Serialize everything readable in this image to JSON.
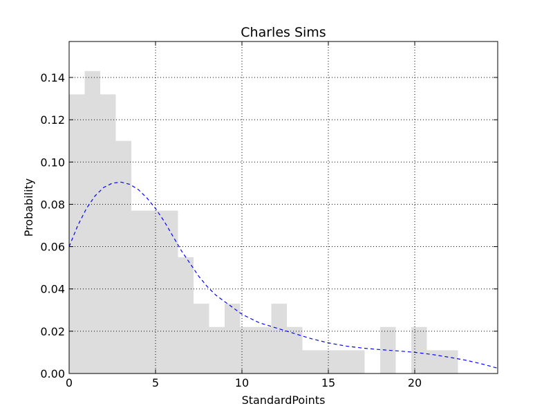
{
  "chart_data": {
    "type": "bar",
    "title": "Charles Sims",
    "xlabel": "StandardPoints",
    "ylabel": "Probability",
    "xlim": [
      0,
      24.8
    ],
    "ylim": [
      0,
      0.157
    ],
    "grid": true,
    "x_ticks": [
      0,
      5,
      10,
      15,
      20
    ],
    "x_tick_labels": [
      "0",
      "5",
      "10",
      "15",
      "20"
    ],
    "y_ticks": [
      0.0,
      0.02,
      0.04,
      0.06,
      0.08,
      0.1,
      0.12,
      0.14
    ],
    "y_tick_labels": [
      "0.00",
      "0.02",
      "0.04",
      "0.06",
      "0.08",
      "0.10",
      "0.12",
      "0.14"
    ],
    "bar_color": "#dddddd",
    "curve_color": "#0000ff",
    "histogram": {
      "bin_width": 0.9,
      "bins": [
        {
          "x0": 0.0,
          "value": 0.132
        },
        {
          "x0": 0.9,
          "value": 0.143
        },
        {
          "x0": 1.8,
          "value": 0.132
        },
        {
          "x0": 2.7,
          "value": 0.11
        },
        {
          "x0": 3.6,
          "value": 0.077
        },
        {
          "x0": 4.5,
          "value": 0.077
        },
        {
          "x0": 5.4,
          "value": 0.077
        },
        {
          "x0": 6.3,
          "value": 0.055
        },
        {
          "x0": 7.2,
          "value": 0.033
        },
        {
          "x0": 8.1,
          "value": 0.022
        },
        {
          "x0": 9.0,
          "value": 0.033
        },
        {
          "x0": 9.9,
          "value": 0.022
        },
        {
          "x0": 10.8,
          "value": 0.022
        },
        {
          "x0": 11.7,
          "value": 0.033
        },
        {
          "x0": 12.6,
          "value": 0.022
        },
        {
          "x0": 13.5,
          "value": 0.011
        },
        {
          "x0": 14.4,
          "value": 0.011
        },
        {
          "x0": 15.3,
          "value": 0.011
        },
        {
          "x0": 16.2,
          "value": 0.011
        },
        {
          "x0": 17.1,
          "value": 0.0
        },
        {
          "x0": 18.0,
          "value": 0.022
        },
        {
          "x0": 18.9,
          "value": 0.0
        },
        {
          "x0": 19.8,
          "value": 0.022
        },
        {
          "x0": 20.7,
          "value": 0.011
        },
        {
          "x0": 21.6,
          "value": 0.011
        }
      ]
    },
    "density_curve": {
      "style": "dashed",
      "x": [
        0,
        0.5,
        1,
        1.5,
        2,
        2.5,
        3,
        3.5,
        4,
        4.5,
        5,
        5.5,
        6,
        6.5,
        7,
        7.5,
        8,
        8.5,
        9,
        9.5,
        10,
        11,
        12,
        13,
        14,
        15,
        16,
        17,
        18,
        19,
        20,
        21,
        22,
        23,
        24,
        24.8
      ],
      "y": [
        0.06,
        0.07,
        0.078,
        0.084,
        0.088,
        0.09,
        0.0905,
        0.0895,
        0.087,
        0.083,
        0.078,
        0.072,
        0.065,
        0.058,
        0.052,
        0.046,
        0.041,
        0.037,
        0.034,
        0.031,
        0.028,
        0.024,
        0.0215,
        0.019,
        0.0165,
        0.0145,
        0.013,
        0.012,
        0.0113,
        0.0107,
        0.01,
        0.009,
        0.0077,
        0.0062,
        0.0043,
        0.0025
      ]
    }
  }
}
